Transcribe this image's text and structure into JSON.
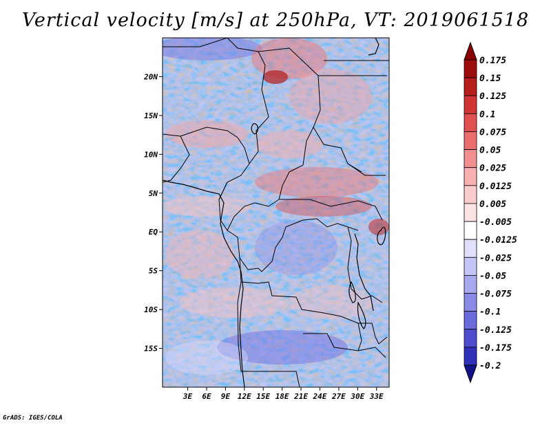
{
  "title": "Vertical velocity [m/s] at 250hPa, VT: 2019061518",
  "credit": "GrADS: IGES/COLA",
  "map": {
    "lon_range": [
      -1,
      35
    ],
    "lat_range": [
      -20,
      25
    ],
    "lat_ticks": [
      {
        "value": 20,
        "label": "20N"
      },
      {
        "value": 15,
        "label": "15N"
      },
      {
        "value": 10,
        "label": "10N"
      },
      {
        "value": 5,
        "label": "5N"
      },
      {
        "value": 0,
        "label": "EQ"
      },
      {
        "value": -5,
        "label": "5S"
      },
      {
        "value": -10,
        "label": "10S"
      },
      {
        "value": -15,
        "label": "15S"
      }
    ],
    "lon_ticks": [
      {
        "value": 3,
        "label": "3E"
      },
      {
        "value": 6,
        "label": "6E"
      },
      {
        "value": 9,
        "label": "9E"
      },
      {
        "value": 12,
        "label": "12E"
      },
      {
        "value": 15,
        "label": "15E"
      },
      {
        "value": 18,
        "label": "18E"
      },
      {
        "value": 21,
        "label": "21E"
      },
      {
        "value": 24,
        "label": "24E"
      },
      {
        "value": 27,
        "label": "27E"
      },
      {
        "value": 30,
        "label": "30E"
      },
      {
        "value": 33,
        "label": "33E"
      }
    ]
  },
  "colorbar": {
    "levels": [
      {
        "label": "0.175",
        "color": "#9c0c0c"
      },
      {
        "label": "0.15",
        "color": "#b81d1d"
      },
      {
        "label": "0.125",
        "color": "#d03434"
      },
      {
        "label": "0.1",
        "color": "#e05050"
      },
      {
        "label": "0.075",
        "color": "#ea6e6e"
      },
      {
        "label": "0.05",
        "color": "#f28f8f"
      },
      {
        "label": "0.025",
        "color": "#f8b0b0"
      },
      {
        "label": "0.0125",
        "color": "#fbcccc"
      },
      {
        "label": "0.005",
        "color": "#fde4e4"
      },
      {
        "label": "-0.005",
        "color": "#ffffff"
      },
      {
        "label": "-0.0125",
        "color": "#e0e0fa"
      },
      {
        "label": "-0.025",
        "color": "#c6c6f6"
      },
      {
        "label": "-0.05",
        "color": "#a9a9f0"
      },
      {
        "label": "-0.075",
        "color": "#8a8ae8"
      },
      {
        "label": "-0.1",
        "color": "#6b6bdc"
      },
      {
        "label": "-0.125",
        "color": "#4c4ccc"
      },
      {
        "label": "-0.175",
        "color": "#3030b8"
      },
      {
        "label": "-0.2",
        "color": "#1a1aa0"
      }
    ],
    "top_color": "#8a0000",
    "bottom_color": "#12128a"
  }
}
